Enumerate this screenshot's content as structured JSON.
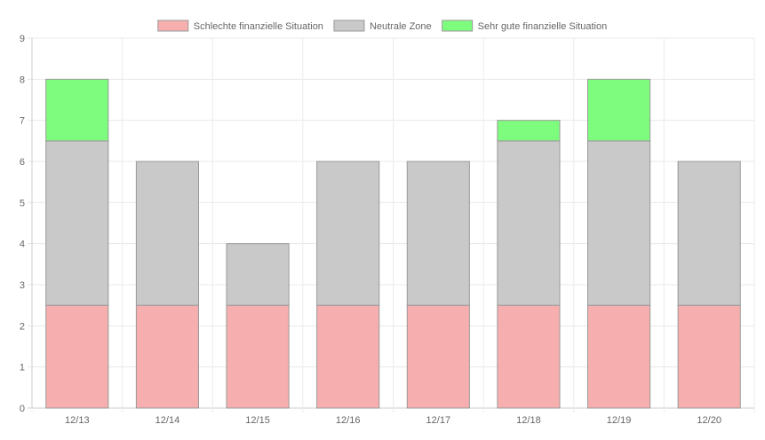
{
  "chart_data": {
    "type": "bar",
    "stacked": true,
    "categories": [
      "12/13",
      "12/14",
      "12/15",
      "12/16",
      "12/17",
      "12/18",
      "12/19",
      "12/20"
    ],
    "series": [
      {
        "name": "Schlechte finanzielle Situation",
        "values": [
          2.5,
          2.5,
          2.5,
          2.5,
          2.5,
          2.5,
          2.5,
          2.5
        ],
        "color": "#f7aeae"
      },
      {
        "name": "Neutrale Zone",
        "values": [
          4,
          3.5,
          1.5,
          3.5,
          3.5,
          4,
          4,
          3.5
        ],
        "color": "#c9c9c9"
      },
      {
        "name": "Sehr gute finanzielle Situation",
        "values": [
          1.5,
          0,
          0,
          0,
          0,
          0.5,
          1.5,
          0
        ],
        "color": "#7dfc7d"
      }
    ],
    "ylim": [
      0,
      9
    ],
    "yticks": [
      0,
      1,
      2,
      3,
      4,
      5,
      6,
      7,
      8,
      9
    ],
    "grid": true,
    "legend_position": "top",
    "border_color": "#999999"
  }
}
